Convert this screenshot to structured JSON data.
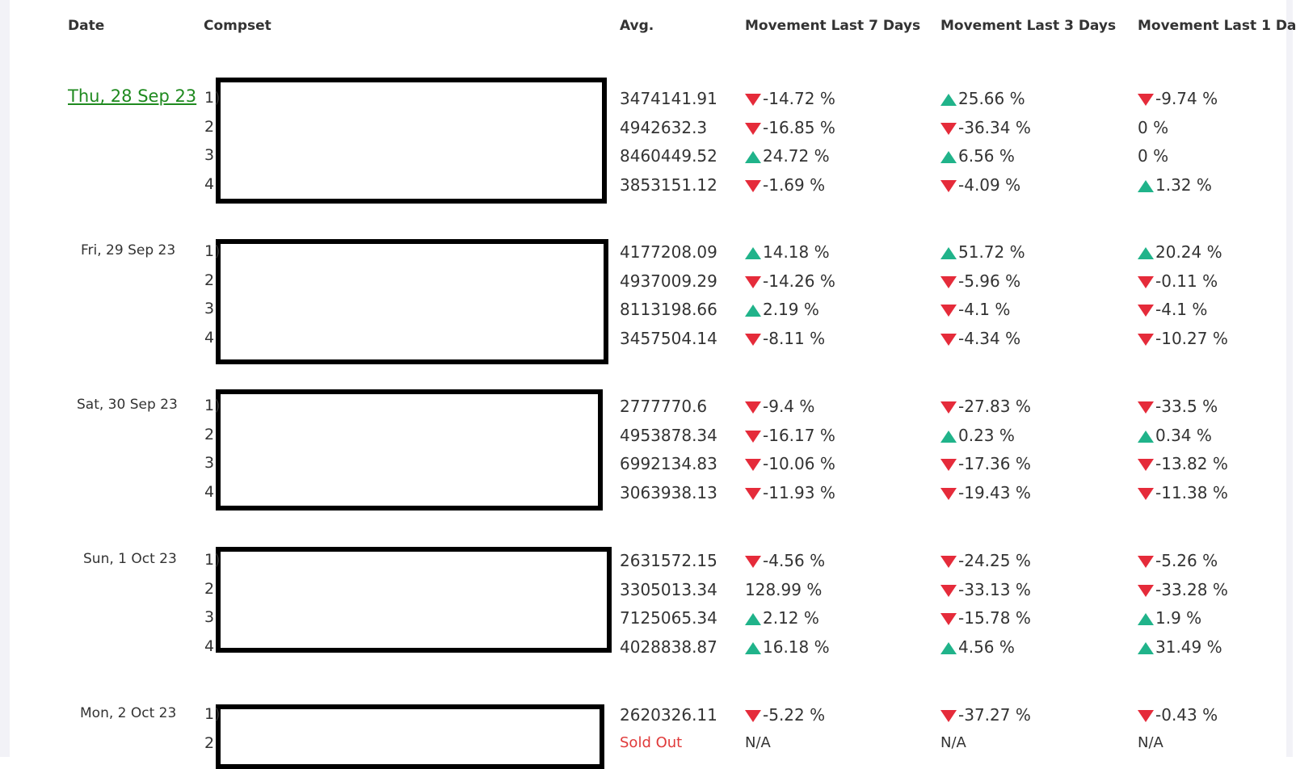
{
  "columns": {
    "date": "Date",
    "compset": "Compset",
    "avg": "Avg.",
    "m7": "Movement Last 7 Days",
    "m3": "Movement Last 3 Days",
    "m1": "Movement Last 1 Da"
  },
  "colors": {
    "up": "#20b38a",
    "down": "#e52b3a",
    "link": "#1f8a1f",
    "sold_out": "#e03a3a"
  },
  "groups": [
    {
      "date": "Thu, 28 Sep 23",
      "is_link": true,
      "rows": [
        {
          "idx": "1)",
          "avg": "3474141.91",
          "m7": {
            "dir": "down",
            "val": "-14.72 %"
          },
          "m3": {
            "dir": "up",
            "val": "25.66 %"
          },
          "m1": {
            "dir": "down",
            "val": "-9.74 %"
          }
        },
        {
          "idx": "2",
          "avg": "4942632.3",
          "m7": {
            "dir": "down",
            "val": "-16.85 %"
          },
          "m3": {
            "dir": "down",
            "val": "-36.34 %"
          },
          "m1": {
            "dir": "none",
            "val": "0 %"
          }
        },
        {
          "idx": "3",
          "avg": "8460449.52",
          "m7": {
            "dir": "up",
            "val": "24.72 %"
          },
          "m3": {
            "dir": "up",
            "val": "6.56 %"
          },
          "m1": {
            "dir": "none",
            "val": "0 %"
          }
        },
        {
          "idx": "4",
          "avg": "3853151.12",
          "m7": {
            "dir": "down",
            "val": "-1.69 %"
          },
          "m3": {
            "dir": "down",
            "val": "-4.09 %"
          },
          "m1": {
            "dir": "up",
            "val": "1.32 %"
          }
        }
      ]
    },
    {
      "date": "Fri, 29 Sep 23",
      "is_link": false,
      "rows": [
        {
          "idx": "1)",
          "avg": "4177208.09",
          "m7": {
            "dir": "up",
            "val": "14.18 %"
          },
          "m3": {
            "dir": "up",
            "val": "51.72 %"
          },
          "m1": {
            "dir": "up",
            "val": "20.24 %"
          }
        },
        {
          "idx": "2",
          "avg": "4937009.29",
          "m7": {
            "dir": "down",
            "val": "-14.26 %"
          },
          "m3": {
            "dir": "down",
            "val": "-5.96 %"
          },
          "m1": {
            "dir": "down",
            "val": "-0.11 %"
          }
        },
        {
          "idx": "3",
          "avg": "8113198.66",
          "m7": {
            "dir": "up",
            "val": "2.19 %"
          },
          "m3": {
            "dir": "down",
            "val": "-4.1 %"
          },
          "m1": {
            "dir": "down",
            "val": "-4.1 %"
          }
        },
        {
          "idx": "4",
          "avg": "3457504.14",
          "m7": {
            "dir": "down",
            "val": "-8.11 %"
          },
          "m3": {
            "dir": "down",
            "val": "-4.34 %"
          },
          "m1": {
            "dir": "down",
            "val": "-10.27 %"
          }
        }
      ]
    },
    {
      "date": "Sat, 30 Sep 23",
      "is_link": false,
      "rows": [
        {
          "idx": "1)",
          "avg": "2777770.6",
          "m7": {
            "dir": "down",
            "val": "-9.4 %"
          },
          "m3": {
            "dir": "down",
            "val": "-27.83 %"
          },
          "m1": {
            "dir": "down",
            "val": "-33.5 %"
          }
        },
        {
          "idx": "2",
          "avg": "4953878.34",
          "m7": {
            "dir": "down",
            "val": "-16.17 %"
          },
          "m3": {
            "dir": "up",
            "val": "0.23 %"
          },
          "m1": {
            "dir": "up",
            "val": "0.34 %"
          }
        },
        {
          "idx": "3",
          "avg": "6992134.83",
          "m7": {
            "dir": "down",
            "val": "-10.06 %"
          },
          "m3": {
            "dir": "down",
            "val": "-17.36 %"
          },
          "m1": {
            "dir": "down",
            "val": "-13.82 %"
          }
        },
        {
          "idx": "4",
          "avg": "3063938.13",
          "m7": {
            "dir": "down",
            "val": "-11.93 %"
          },
          "m3": {
            "dir": "down",
            "val": "-19.43 %"
          },
          "m1": {
            "dir": "down",
            "val": "-11.38 %"
          }
        }
      ]
    },
    {
      "date": "Sun, 1 Oct 23",
      "is_link": false,
      "rows": [
        {
          "idx": "1)",
          "avg": "2631572.15",
          "m7": {
            "dir": "down",
            "val": "-4.56 %"
          },
          "m3": {
            "dir": "down",
            "val": "-24.25 %"
          },
          "m1": {
            "dir": "down",
            "val": "-5.26 %"
          }
        },
        {
          "idx": "2",
          "avg": "3305013.34",
          "m7": {
            "dir": "none",
            "val": "128.99 %"
          },
          "m3": {
            "dir": "down",
            "val": "-33.13 %"
          },
          "m1": {
            "dir": "down",
            "val": "-33.28 %"
          }
        },
        {
          "idx": "3",
          "avg": "7125065.34",
          "m7": {
            "dir": "up",
            "val": "2.12 %"
          },
          "m3": {
            "dir": "down",
            "val": "-15.78 %"
          },
          "m1": {
            "dir": "up",
            "val": "1.9 %"
          }
        },
        {
          "idx": "4",
          "avg": "4028838.87",
          "m7": {
            "dir": "up",
            "val": "16.18 %"
          },
          "m3": {
            "dir": "up",
            "val": "4.56 %"
          },
          "m1": {
            "dir": "up",
            "val": "31.49 %"
          }
        }
      ]
    },
    {
      "date": "Mon, 2 Oct 23",
      "is_link": false,
      "rows": [
        {
          "idx": "1)",
          "avg": "2620326.11",
          "m7": {
            "dir": "down",
            "val": "-5.22 %"
          },
          "m3": {
            "dir": "down",
            "val": "-37.27 %"
          },
          "m1": {
            "dir": "down",
            "val": "-0.43 %"
          }
        },
        {
          "idx": "2",
          "avg": "Sold Out",
          "sold_out": true,
          "m7": {
            "dir": "none",
            "val": "N/A"
          },
          "m3": {
            "dir": "none",
            "val": "N/A"
          },
          "m1": {
            "dir": "none",
            "val": "N/A"
          }
        }
      ]
    }
  ]
}
